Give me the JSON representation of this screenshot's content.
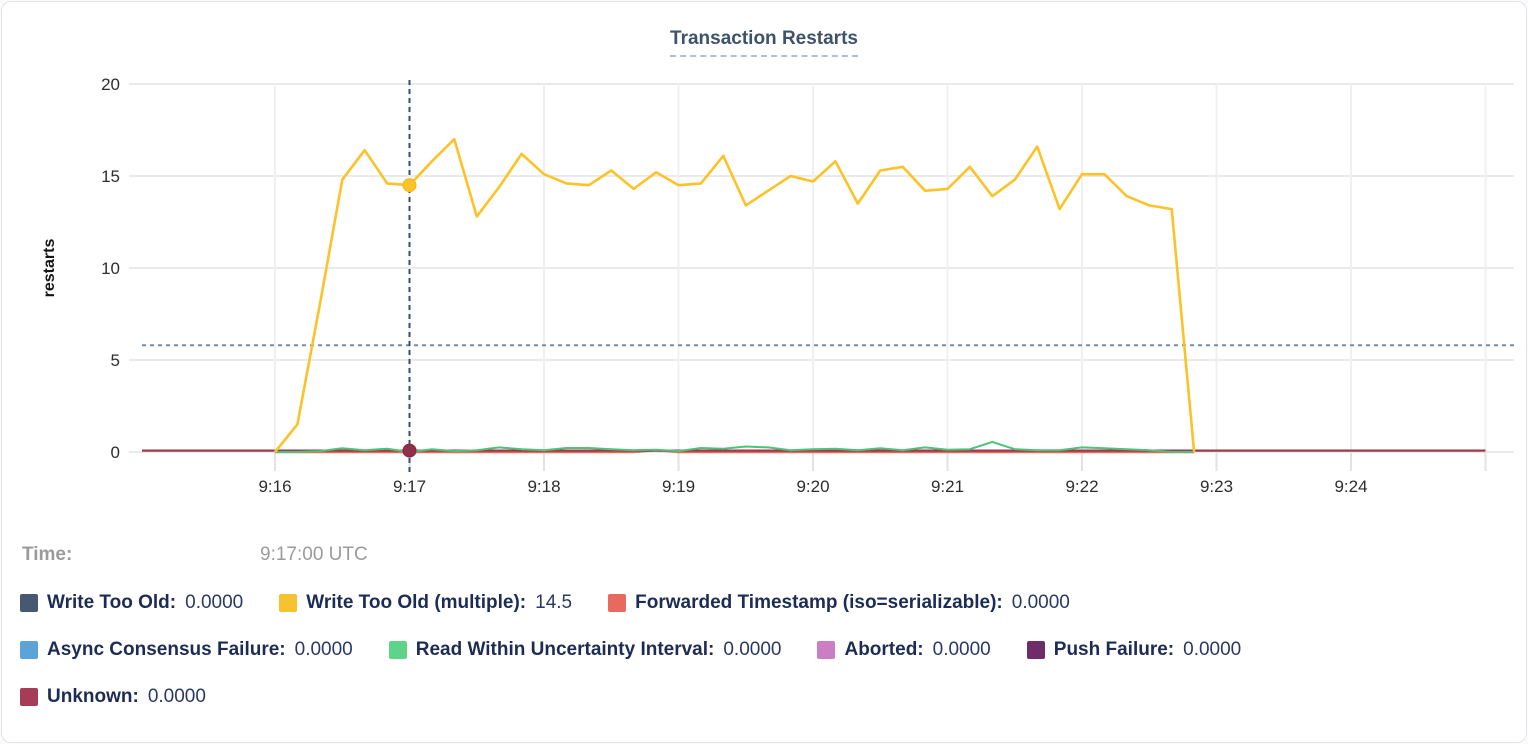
{
  "hover_readout": {
    "time_label": "Time:",
    "time_value": "9:17:00 UTC"
  },
  "legend": {
    "rows": [
      [
        {
          "label": "Write Too Old:",
          "value": "0.0000",
          "swatch_color": "#475872"
        },
        {
          "label": "Write Too Old (multiple):",
          "value": "14.5",
          "swatch_color": "#f7c22f"
        },
        {
          "label": "Forwarded Timestamp (iso=serializable):",
          "value": "0.0000",
          "swatch_color": "#e8695d"
        }
      ],
      [
        {
          "label": "Async Consensus Failure:",
          "value": "0.0000",
          "swatch_color": "#5ba3d9"
        },
        {
          "label": "Read Within Uncertainty Interval:",
          "value": "0.0000",
          "swatch_color": "#5ed489"
        },
        {
          "label": "Aborted:",
          "value": "0.0000",
          "swatch_color": "#cc7ec3"
        },
        {
          "label": "Push Failure:",
          "value": "0.0000",
          "swatch_color": "#6e2d68"
        }
      ],
      [
        {
          "label": "Unknown:",
          "value": "0.0000",
          "swatch_color": "#a43d57"
        }
      ]
    ]
  },
  "chart_data": {
    "type": "line",
    "title": "Transaction Restarts",
    "ylabel": "restarts",
    "ylim": [
      0,
      20
    ],
    "yticks": [
      0,
      5,
      10,
      15,
      20
    ],
    "xticks": [
      "9:16",
      "9:17",
      "9:18",
      "9:19",
      "9:20",
      "9:21",
      "9:22",
      "9:23",
      "9:24"
    ],
    "x_domain": [
      "9:15",
      "9:25"
    ],
    "grid": true,
    "legend_position": "bottom",
    "sample_step_seconds": 10,
    "series_start_time": "9:16:00",
    "crosshair": {
      "hover_time": "9:17:00 UTC",
      "x_tick": "9:17",
      "highlight_dots": [
        {
          "series": "Write Too Old (multiple)",
          "value": 14.5
        },
        {
          "series": "Unknown",
          "value": 0
        }
      ],
      "dashed_hline_value": 5.8
    },
    "series": [
      {
        "name": "Write Too Old",
        "color": "#475872",
        "constant": 0
      },
      {
        "name": "Write Too Old (multiple)",
        "color": "#fcc228",
        "values": [
          0,
          1.5,
          8.0,
          14.8,
          16.4,
          14.6,
          14.5,
          15.8,
          17.0,
          12.8,
          14.4,
          16.2,
          15.1,
          14.6,
          14.5,
          15.3,
          14.3,
          15.2,
          14.5,
          14.6,
          16.1,
          13.4,
          14.2,
          15.0,
          14.7,
          15.8,
          13.5,
          15.3,
          15.5,
          14.2,
          14.3,
          15.5,
          13.9,
          14.8,
          16.6,
          13.2,
          15.1,
          15.1,
          13.9,
          13.4,
          13.2,
          0
        ]
      },
      {
        "name": "Forwarded Timestamp (iso=serializable)",
        "color": "#e8695d",
        "values": [
          0,
          0,
          0,
          0,
          0,
          0,
          0,
          0,
          0,
          0,
          0,
          0,
          0,
          0,
          0,
          0,
          0,
          0.1,
          0,
          0,
          0,
          0,
          0,
          0,
          0,
          0,
          0,
          0,
          0,
          0,
          0,
          0,
          0,
          0,
          0,
          0,
          0,
          0,
          0,
          0,
          0,
          0
        ]
      },
      {
        "name": "Async Consensus Failure",
        "color": "#5ba3d9",
        "constant": 0
      },
      {
        "name": "Read Within Uncertainty Interval",
        "color": "#4dc279",
        "values": [
          0,
          0,
          0.05,
          0.2,
          0.1,
          0.18,
          0,
          0.15,
          0.05,
          0.1,
          0.25,
          0.15,
          0.1,
          0.22,
          0.22,
          0.15,
          0.1,
          0.12,
          0.05,
          0.22,
          0.18,
          0.3,
          0.25,
          0.1,
          0.15,
          0.18,
          0.1,
          0.2,
          0.1,
          0.25,
          0.12,
          0.15,
          0.55,
          0.15,
          0.1,
          0.1,
          0.25,
          0.2,
          0.15,
          0.1,
          0,
          0
        ]
      },
      {
        "name": "Aborted",
        "color": "#cc7ec3",
        "constant": 0
      },
      {
        "name": "Push Failure",
        "color": "#6e2d68",
        "constant": 0
      },
      {
        "name": "Unknown",
        "color": "#9e3a4f",
        "constant": 0,
        "spans_full_domain": true
      }
    ]
  }
}
